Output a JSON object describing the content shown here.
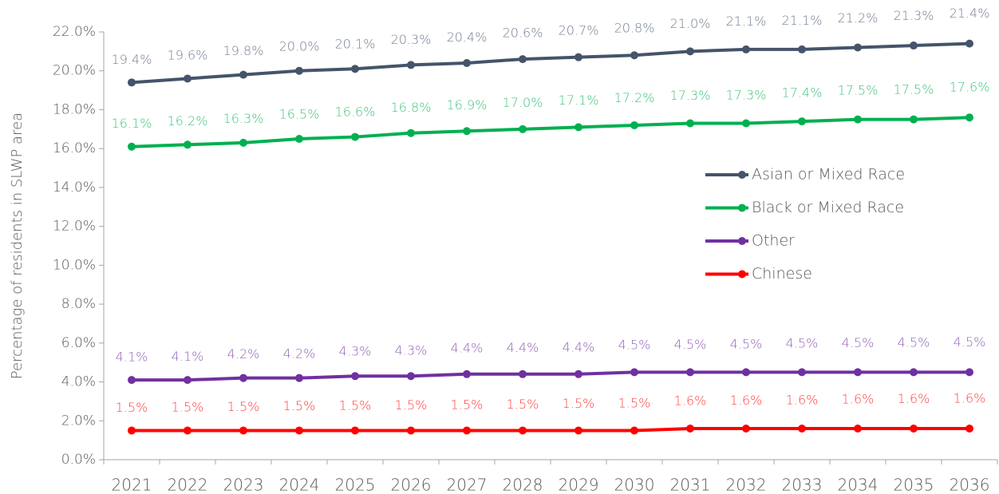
{
  "chart_data": {
    "type": "line",
    "y_label": "Percentage of  residents in SLWP area",
    "categories": [
      "2021",
      "2022",
      "2023",
      "2024",
      "2025",
      "2026",
      "2027",
      "2028",
      "2029",
      "2030",
      "2031",
      "2032",
      "2033",
      "2034",
      "2035",
      "2036"
    ],
    "series": [
      {
        "name": "Asian or Mixed Race",
        "color": "#44546a",
        "values": [
          19.4,
          19.6,
          19.8,
          20.0,
          20.1,
          20.3,
          20.4,
          20.6,
          20.7,
          20.8,
          21.0,
          21.1,
          21.1,
          21.2,
          21.3,
          21.4
        ],
        "value_labels": [
          "19.4%",
          "19.6%",
          "19.8%",
          "20.0%",
          "20.1%",
          "20.3%",
          "20.4%",
          "20.6%",
          "20.7%",
          "20.8%",
          "21.0%",
          "21.1%",
          "21.1%",
          "21.2%",
          "21.3%",
          "21.4%"
        ]
      },
      {
        "name": "Black or Mixed Race",
        "color": "#00b050",
        "values": [
          16.1,
          16.2,
          16.3,
          16.5,
          16.6,
          16.8,
          16.9,
          17.0,
          17.1,
          17.2,
          17.3,
          17.3,
          17.4,
          17.5,
          17.5,
          17.6
        ],
        "value_labels": [
          "16.1%",
          "16.2%",
          "16.3%",
          "16.5%",
          "16.6%",
          "16.8%",
          "16.9%",
          "17.0%",
          "17.1%",
          "17.2%",
          "17.3%",
          "17.3%",
          "17.4%",
          "17.5%",
          "17.5%",
          "17.6%"
        ]
      },
      {
        "name": "Other",
        "color": "#7030a0",
        "values": [
          4.1,
          4.1,
          4.2,
          4.2,
          4.3,
          4.3,
          4.4,
          4.4,
          4.4,
          4.5,
          4.5,
          4.5,
          4.5,
          4.5,
          4.5,
          4.5
        ],
        "value_labels": [
          "4.1%",
          "4.1%",
          "4.2%",
          "4.2%",
          "4.3%",
          "4.3%",
          "4.4%",
          "4.4%",
          "4.4%",
          "4.5%",
          "4.5%",
          "4.5%",
          "4.5%",
          "4.5%",
          "4.5%",
          "4.5%"
        ]
      },
      {
        "name": "Chinese",
        "color": "#ff0000",
        "values": [
          1.5,
          1.5,
          1.5,
          1.5,
          1.5,
          1.5,
          1.5,
          1.5,
          1.5,
          1.5,
          1.6,
          1.6,
          1.6,
          1.6,
          1.6,
          1.6
        ],
        "value_labels": [
          "1.5%",
          "1.5%",
          "1.5%",
          "1.5%",
          "1.5%",
          "1.5%",
          "1.5%",
          "1.5%",
          "1.5%",
          "1.5%",
          "1.6%",
          "1.6%",
          "1.6%",
          "1.6%",
          "1.6%",
          "1.6%"
        ]
      }
    ],
    "ylim": [
      0,
      22
    ],
    "yticks": [
      {
        "value": 0,
        "label": "0.0%"
      },
      {
        "value": 2,
        "label": "2.0%"
      },
      {
        "value": 4,
        "label": "4.0%"
      },
      {
        "value": 6,
        "label": "6.0%"
      },
      {
        "value": 8,
        "label": "8.0%"
      },
      {
        "value": 10,
        "label": "10.0%"
      },
      {
        "value": 12,
        "label": "12.0%"
      },
      {
        "value": 14,
        "label": "14.0%"
      },
      {
        "value": 16,
        "label": "16.0%"
      },
      {
        "value": 18,
        "label": "18.0%"
      },
      {
        "value": 20,
        "label": "20.0%"
      },
      {
        "value": 22,
        "label": "22.0%"
      }
    ],
    "grid": false
  }
}
